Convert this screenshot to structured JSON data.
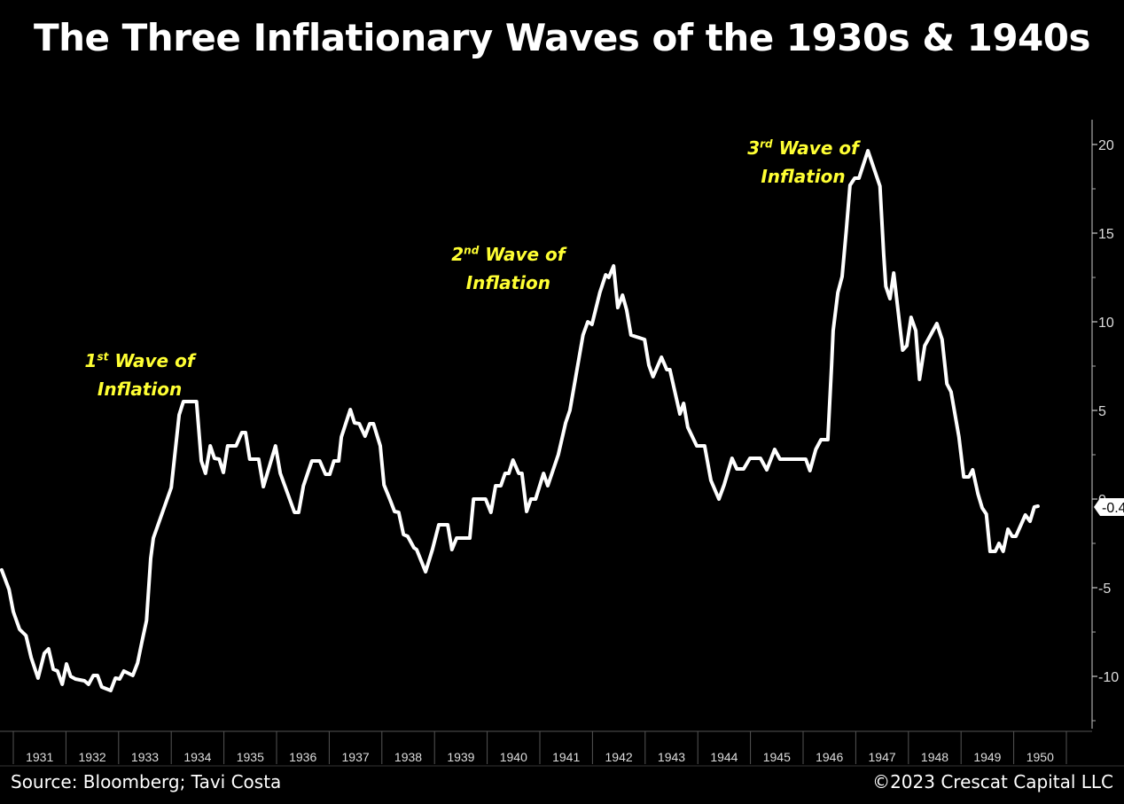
{
  "chart_data": {
    "type": "line",
    "title": "The Three Inflationary Waves of the 1930s & 1940s",
    "xlabel": "",
    "ylabel": "",
    "x_ticks": [
      "1931",
      "1932",
      "1933",
      "1934",
      "1935",
      "1936",
      "1937",
      "1938",
      "1939",
      "1940",
      "1941",
      "1942",
      "1943",
      "1944",
      "1945",
      "1946",
      "1947",
      "1948",
      "1949",
      "1950"
    ],
    "y_ticks": [
      "20",
      "15",
      "10",
      "5",
      "0",
      "-5",
      "-10"
    ],
    "y_tick_values": [
      20,
      15,
      10,
      5,
      0,
      -5,
      -10
    ],
    "ylim": [
      -12.5,
      21.5
    ],
    "xlim": [
      1930.75,
      1951.5
    ],
    "grid": false,
    "last_value_label": "-0.4",
    "line_color": "#ffffff",
    "annotation_color": "#ffff33",
    "annotations": [
      {
        "ordinal": "1",
        "suffix": "st",
        "line1_rest": " Wave of",
        "line2": "Inflation",
        "x": 1933.4,
        "y": 7.5
      },
      {
        "ordinal": "2",
        "suffix": "nd",
        "line1_rest": " Wave of",
        "line2": "Inflation",
        "x": 1940.4,
        "y": 13.5
      },
      {
        "ordinal": "3",
        "suffix": "rd",
        "line1_rest": " Wave of",
        "line2": "Inflation",
        "x": 1946.0,
        "y": 19.5
      }
    ],
    "series": [
      {
        "name": "Inflation",
        "x": [
          1930.78,
          1930.92,
          1931.0,
          1931.12,
          1931.24,
          1931.34,
          1931.47,
          1931.59,
          1931.67,
          1931.76,
          1931.84,
          1931.93,
          1932.01,
          1932.09,
          1932.18,
          1932.35,
          1932.43,
          1932.52,
          1932.6,
          1932.68,
          1932.85,
          1932.94,
          1933.02,
          1933.1,
          1933.27,
          1933.36,
          1933.44,
          1933.53,
          1933.61,
          1933.66,
          1934.0,
          1934.15,
          1934.23,
          1934.48,
          1934.57,
          1934.65,
          1934.74,
          1934.82,
          1934.91,
          1934.99,
          1935.07,
          1935.23,
          1935.34,
          1935.41,
          1935.49,
          1935.66,
          1935.75,
          1935.98,
          1936.07,
          1936.34,
          1936.42,
          1936.51,
          1936.67,
          1936.82,
          1936.93,
          1937.01,
          1937.09,
          1937.18,
          1937.23,
          1937.4,
          1937.48,
          1937.57,
          1937.68,
          1937.77,
          1937.84,
          1937.97,
          1938.04,
          1938.15,
          1938.24,
          1938.32,
          1938.41,
          1938.49,
          1938.61,
          1938.66,
          1938.83,
          1938.96,
          1939.08,
          1939.25,
          1939.33,
          1939.42,
          1939.67,
          1939.74,
          1939.97,
          1940.07,
          1940.16,
          1940.26,
          1940.34,
          1940.41,
          1940.49,
          1940.6,
          1940.66,
          1940.75,
          1940.83,
          1940.92,
          1941.07,
          1941.15,
          1941.35,
          1941.49,
          1941.57,
          1941.82,
          1941.91,
          1941.99,
          1942.14,
          1942.25,
          1942.31,
          1942.4,
          1942.48,
          1942.57,
          1942.65,
          1942.73,
          1942.99,
          1943.07,
          1943.15,
          1943.31,
          1943.41,
          1943.47,
          1943.66,
          1943.73,
          1943.81,
          1943.98,
          1944.13,
          1944.25,
          1944.4,
          1944.5,
          1944.65,
          1944.74,
          1944.87,
          1944.99,
          1945.19,
          1945.31,
          1945.46,
          1945.56,
          1946.05,
          1946.13,
          1946.24,
          1946.34,
          1946.47,
          1946.54,
          1946.57,
          1946.66,
          1946.74,
          1946.82,
          1946.89,
          1946.98,
          1947.06,
          1947.23,
          1947.46,
          1947.53,
          1947.57,
          1947.65,
          1947.72,
          1947.89,
          1947.97,
          1948.05,
          1948.14,
          1948.21,
          1948.31,
          1948.54,
          1948.64,
          1948.73,
          1948.81,
          1948.96,
          1949.05,
          1949.15,
          1949.22,
          1949.32,
          1949.4,
          1949.48,
          1949.55,
          1949.65,
          1949.72,
          1949.8,
          1949.89,
          1949.97,
          1950.04,
          1950.22,
          1950.31,
          1950.39,
          1950.46
        ],
        "values": [
          -4.0,
          -5.1,
          -6.35,
          -7.35,
          -7.7,
          -8.95,
          -10.1,
          -8.7,
          -8.45,
          -9.6,
          -9.7,
          -10.45,
          -9.3,
          -10.0,
          -10.15,
          -10.25,
          -10.45,
          -9.95,
          -9.95,
          -10.6,
          -10.8,
          -10.1,
          -10.15,
          -9.7,
          -9.95,
          -9.25,
          -8.1,
          -6.85,
          -3.35,
          -2.2,
          0.65,
          4.75,
          5.5,
          5.5,
          2.15,
          1.45,
          3.0,
          2.3,
          2.25,
          1.5,
          3.0,
          3.0,
          3.75,
          3.75,
          2.25,
          2.25,
          0.7,
          3.0,
          1.45,
          -0.75,
          -0.75,
          0.75,
          2.15,
          2.15,
          1.4,
          1.4,
          2.15,
          2.15,
          3.5,
          5.05,
          4.3,
          4.25,
          3.55,
          4.25,
          4.25,
          3.0,
          0.8,
          0.0,
          -0.7,
          -0.75,
          -2.0,
          -2.1,
          -2.75,
          -2.85,
          -4.1,
          -2.85,
          -1.45,
          -1.45,
          -2.85,
          -2.2,
          -2.2,
          0.0,
          0.0,
          -0.75,
          0.75,
          0.75,
          1.45,
          1.45,
          2.2,
          1.45,
          1.45,
          -0.7,
          0.0,
          0.0,
          1.45,
          0.75,
          2.5,
          4.3,
          5.0,
          9.25,
          10.0,
          9.85,
          11.65,
          12.65,
          12.5,
          13.15,
          10.8,
          11.5,
          10.65,
          9.25,
          9.0,
          7.55,
          6.9,
          8.0,
          7.3,
          7.3,
          4.8,
          5.4,
          4.05,
          3.0,
          3.0,
          1.05,
          0.0,
          0.8,
          2.3,
          1.7,
          1.7,
          2.3,
          2.3,
          1.65,
          2.8,
          2.25,
          2.25,
          1.6,
          2.8,
          3.35,
          3.35,
          7.5,
          9.5,
          11.65,
          12.55,
          15.15,
          17.7,
          18.1,
          18.1,
          19.65,
          17.65,
          13.8,
          12.0,
          11.3,
          12.75,
          8.4,
          8.65,
          10.25,
          9.5,
          6.75,
          8.65,
          9.9,
          9.0,
          6.5,
          6.05,
          3.5,
          1.25,
          1.25,
          1.65,
          0.3,
          -0.5,
          -0.85,
          -2.95,
          -2.95,
          -2.5,
          -2.95,
          -1.7,
          -2.1,
          -2.1,
          -0.9,
          -1.25,
          -0.45,
          -0.4
        ]
      }
    ]
  },
  "footer": {
    "source": "Source: Bloomberg; Tavi Costa",
    "copyright": "©2023 Crescat Capital LLC"
  }
}
